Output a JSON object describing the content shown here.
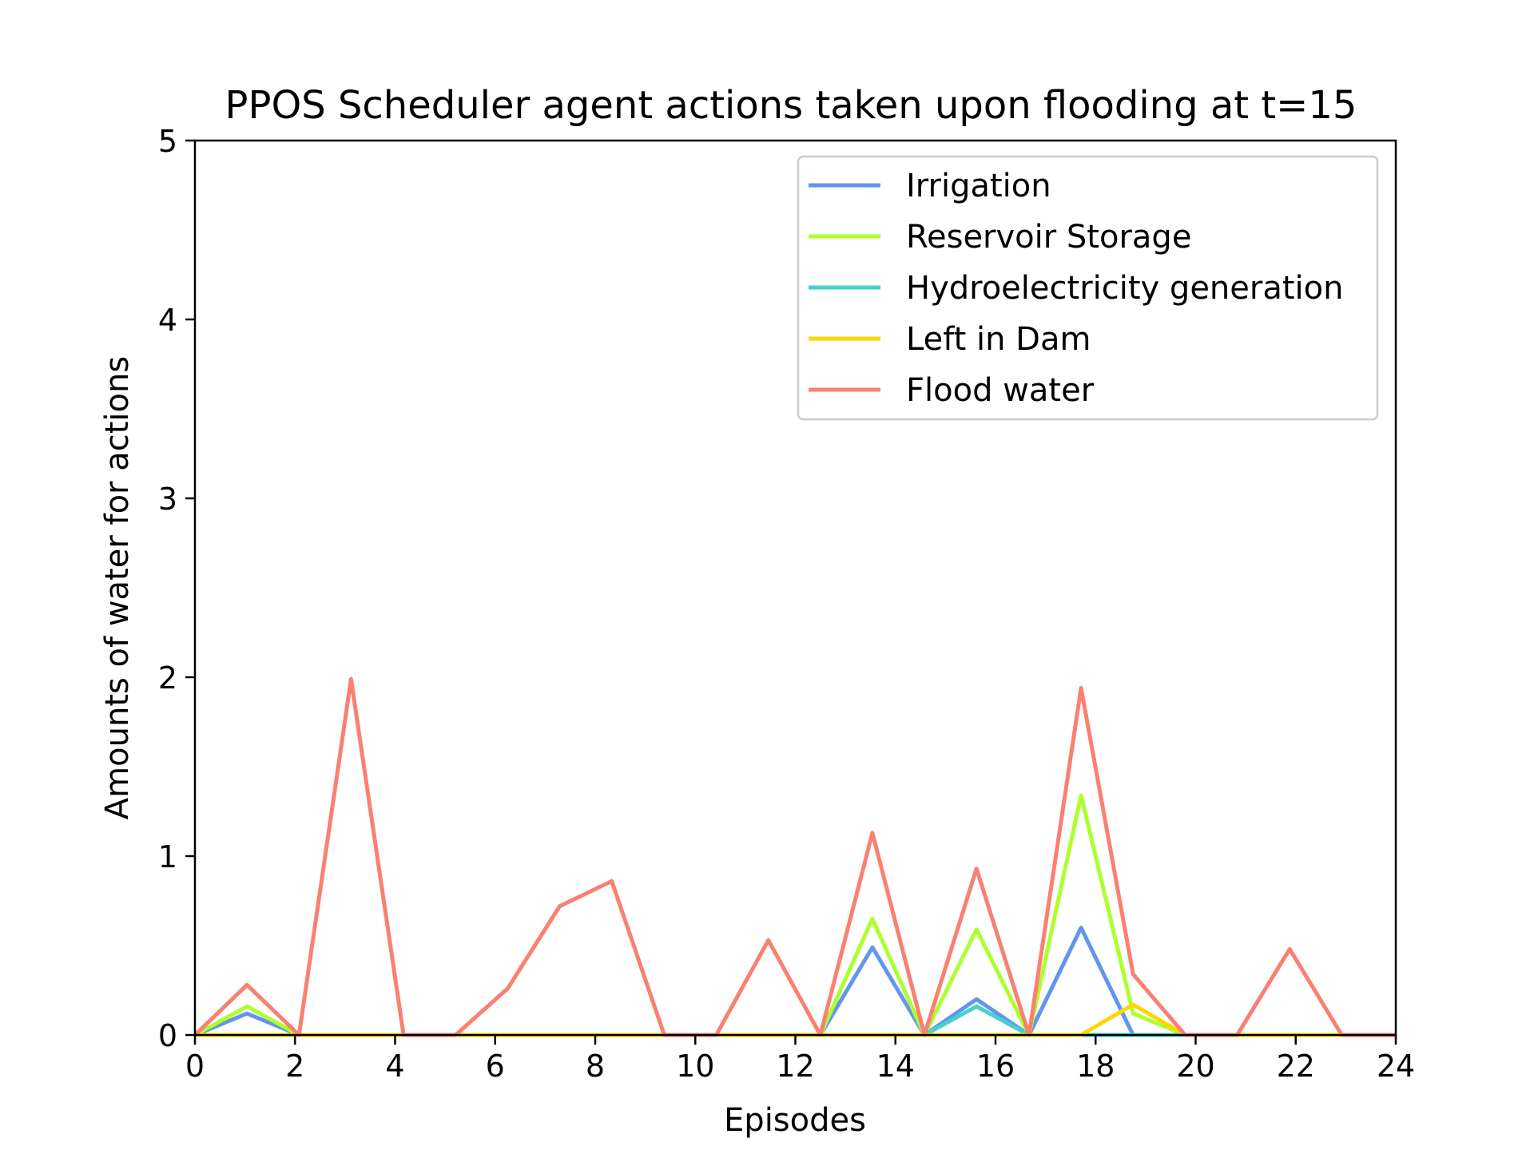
{
  "chart_data": {
    "type": "line",
    "title": "PPOS Scheduler agent actions taken upon flooding at t=15",
    "xlabel": "Episodes",
    "ylabel": "Amounts of water for actions",
    "xlim": [
      0,
      24
    ],
    "ylim": [
      0,
      5
    ],
    "xticks": [
      0,
      2,
      4,
      6,
      8,
      10,
      12,
      14,
      16,
      18,
      20,
      22,
      24
    ],
    "yticks": [
      0,
      1,
      2,
      3,
      4,
      5
    ],
    "grid": false,
    "legend_position": "top-right",
    "x": [
      0,
      1.04,
      2.08,
      3.12,
      4.17,
      5.21,
      6.25,
      7.29,
      8.33,
      9.38,
      10.42,
      11.46,
      12.5,
      13.54,
      14.58,
      15.62,
      16.67,
      17.71,
      18.75,
      19.79,
      20.83,
      21.88,
      22.92,
      24
    ],
    "series": [
      {
        "name": "Irrigation",
        "color": "#6495ED",
        "values": [
          0,
          0.12,
          0,
          0,
          0,
          0,
          0,
          0,
          0,
          0,
          0,
          0,
          0,
          0.49,
          0,
          0.2,
          0,
          0.6,
          0,
          0,
          0,
          0,
          0,
          0
        ]
      },
      {
        "name": "Reservoir Storage",
        "color": "#ADFF2F",
        "values": [
          0,
          0.16,
          0,
          0,
          0,
          0,
          0,
          0,
          0,
          0,
          0,
          0,
          0,
          0.65,
          0,
          0.59,
          0,
          1.34,
          0.12,
          0,
          0,
          0,
          0,
          0
        ]
      },
      {
        "name": "Hydroelectricity generation",
        "color": "#48D1CC",
        "values": [
          0,
          0,
          0,
          0,
          0,
          0,
          0,
          0,
          0,
          0,
          0,
          0,
          0,
          0,
          0,
          0.16,
          0,
          0,
          0,
          0,
          0,
          0,
          0,
          0
        ]
      },
      {
        "name": "Left in Dam",
        "color": "#FFD700",
        "values": [
          0,
          0,
          0,
          0,
          0,
          0,
          0,
          0,
          0,
          0,
          0,
          0,
          0,
          0,
          0,
          0,
          0,
          0,
          0.17,
          0,
          0,
          0,
          0,
          0
        ]
      },
      {
        "name": "Flood water",
        "color": "#FA8072",
        "values": [
          0,
          0.28,
          0,
          1.99,
          0,
          0,
          0.26,
          0.72,
          0.86,
          0,
          0,
          0.53,
          0,
          1.13,
          0,
          0.93,
          0,
          1.94,
          0.34,
          0,
          0,
          0.48,
          0,
          0
        ]
      }
    ]
  }
}
